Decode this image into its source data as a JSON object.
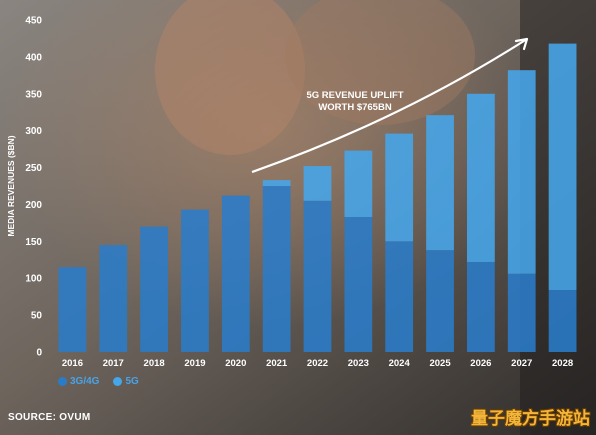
{
  "chart_data": {
    "type": "bar",
    "stacked": true,
    "categories": [
      "2016",
      "2017",
      "2018",
      "2019",
      "2020",
      "2021",
      "2022",
      "2023",
      "2024",
      "2025",
      "2026",
      "2027",
      "2028"
    ],
    "series": [
      {
        "name": "3G/4G",
        "color": "#2a7cc9",
        "values": [
          115,
          145,
          170,
          193,
          212,
          225,
          205,
          183,
          150,
          138,
          122,
          106,
          84
        ]
      },
      {
        "name": "5G",
        "color": "#46a6ea",
        "values": [
          0,
          0,
          0,
          0,
          0,
          8,
          47,
          90,
          146,
          183,
          228,
          276,
          334
        ]
      }
    ],
    "totals": [
      115,
      145,
      170,
      193,
      212,
      233,
      252,
      273,
      296,
      321,
      350,
      382,
      418
    ],
    "ylabel": "MEDIA REVENUES ($BN)",
    "ylim": [
      0,
      450
    ],
    "yticks": [
      0,
      50,
      100,
      150,
      200,
      250,
      300,
      350,
      400,
      450
    ],
    "grid": false,
    "legend_position": "bottom-left",
    "annotation": {
      "line1": "5G REVENUE UPLIFT",
      "line2": "WORTH $765BN"
    }
  },
  "source_label": "SOURCE: OVUM",
  "watermark": "量子魔方手游站",
  "colors": {
    "tick_text": "#ffffff",
    "arrow": "#ffffff",
    "legend_text": "#4aa3e6"
  }
}
